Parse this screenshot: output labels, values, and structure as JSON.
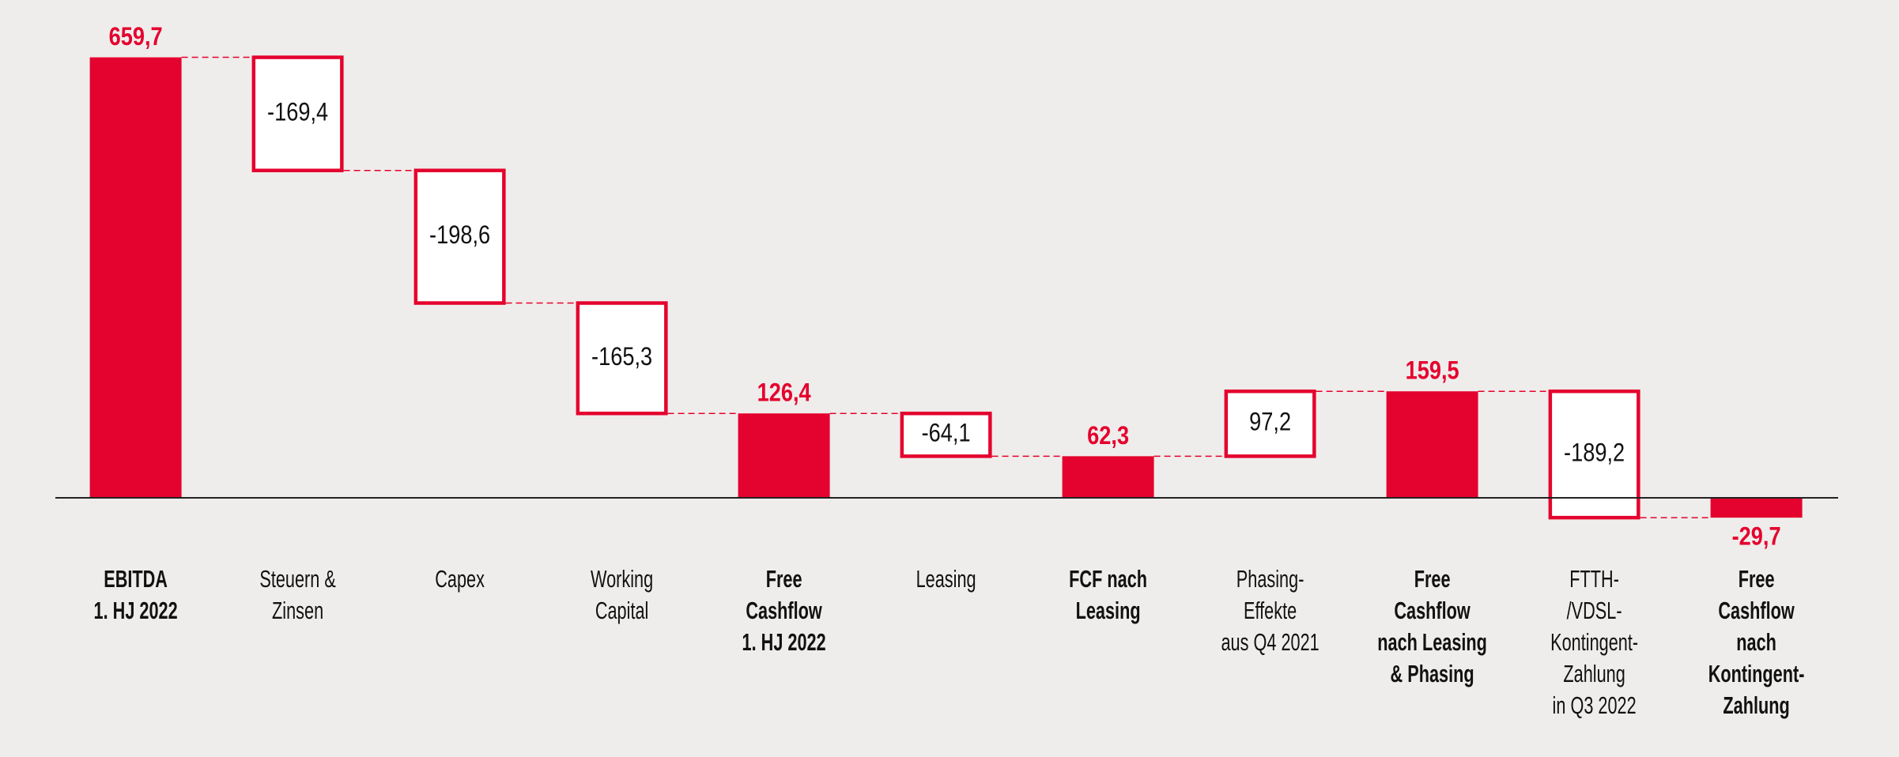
{
  "chart_data": {
    "type": "waterfall",
    "categories": [
      [
        "EBITDA",
        "1. HJ 2022"
      ],
      [
        "Steuern &",
        "Zinsen"
      ],
      [
        "Capex"
      ],
      [
        "Working",
        "Capital"
      ],
      [
        "Free",
        "Cashflow",
        "1. HJ 2022"
      ],
      [
        "Leasing"
      ],
      [
        "FCF nach",
        "Leasing"
      ],
      [
        "Phasing-",
        "Effekte",
        "aus Q4 2021"
      ],
      [
        "Free",
        "Cashflow",
        "nach Leasing",
        "& Phasing"
      ],
      [
        "FTTH-",
        "/VDSL-",
        "Kontingent-",
        "Zahlung",
        "in Q3 2022"
      ],
      [
        "Free",
        "Cashflow",
        "nach",
        "Kontingent-",
        "Zahlung"
      ]
    ],
    "values": [
      659.7,
      -169.4,
      -198.6,
      -165.3,
      126.4,
      -64.1,
      62.3,
      97.2,
      159.5,
      -189.2,
      -29.7
    ],
    "value_labels": [
      "659,7",
      "-169,4",
      "-198,6",
      "-165,3",
      "126,4",
      "-64,1",
      "62,3",
      "97,2",
      "159,5",
      "-189,2",
      "-29,7"
    ],
    "totals": [
      true,
      false,
      false,
      false,
      true,
      false,
      true,
      false,
      true,
      false,
      true
    ],
    "color": "#e4032e",
    "ylim": [
      -100,
      700
    ],
    "grid": false
  }
}
